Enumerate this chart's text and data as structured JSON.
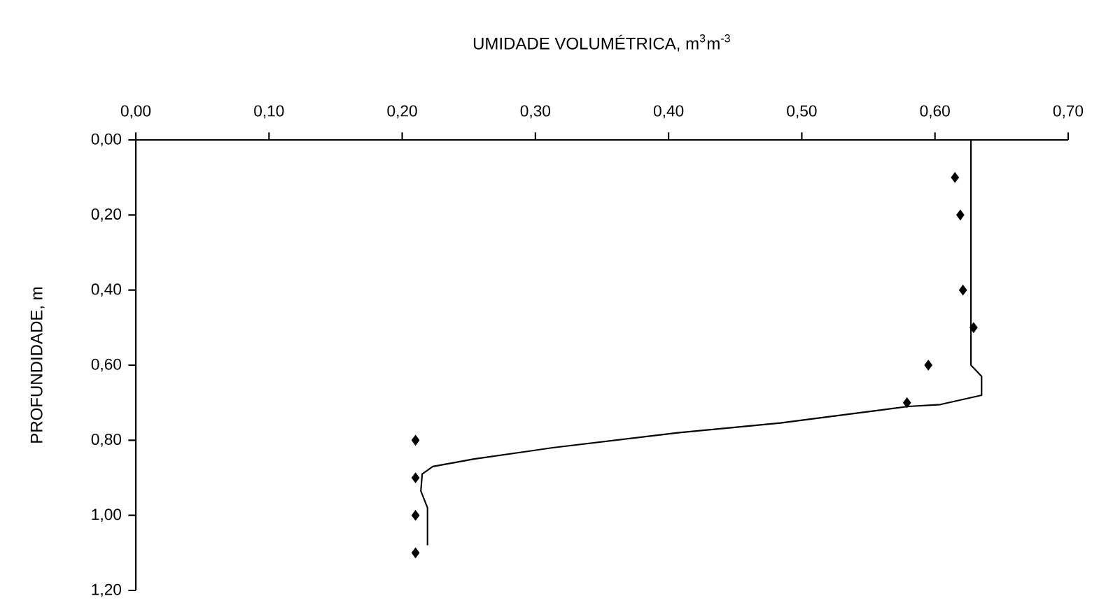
{
  "chart_data": {
    "type": "scatter",
    "xlabel": "UMIDADE VOLUMÉTRICA, m$^{3}$m$^{-3}$",
    "ylabel": "PROFUNDIDADE, m",
    "xlim": [
      0,
      0.7
    ],
    "ylim": [
      1.2,
      0
    ],
    "xticks": [
      {
        "value": 0,
        "label": "0,00"
      },
      {
        "value": 0.1,
        "label": "0,10"
      },
      {
        "value": 0.2,
        "label": "0,20"
      },
      {
        "value": 0.3,
        "label": "0,30"
      },
      {
        "value": 0.4,
        "label": "0,40"
      },
      {
        "value": 0.5,
        "label": "0,50"
      },
      {
        "value": 0.6,
        "label": "0,60"
      },
      {
        "value": 0.7,
        "label": "0,70"
      }
    ],
    "yticks": [
      {
        "value": 0,
        "label": "0,00"
      },
      {
        "value": 0.2,
        "label": "0,20"
      },
      {
        "value": 0.4,
        "label": "0,40"
      },
      {
        "value": 0.6,
        "label": "0,60"
      },
      {
        "value": 0.8,
        "label": "0,80"
      },
      {
        "value": 1.0,
        "label": "1,00"
      },
      {
        "value": 1.2,
        "label": "1,20"
      }
    ],
    "series": [
      {
        "color": "#000000",
        "marker": "diamond",
        "x": [
          0.615,
          0.619,
          0.621,
          0.629,
          0.595,
          0.579,
          0.21,
          0.21,
          0.21,
          0.21
        ],
        "values": [
          0.1,
          0.2,
          0.4,
          0.5,
          0.6,
          0.7,
          0.8,
          0.9,
          1.0,
          1.1
        ]
      },
      {
        "type": "line",
        "color": "#000000",
        "line_style": "solid",
        "marker": "none",
        "x": [
          0.627,
          0.627,
          0.635,
          0.635,
          0.604,
          0.58,
          0.484,
          0.407,
          0.313,
          0.254,
          0.223,
          0.215,
          0.214,
          0.219,
          0.219
        ],
        "values": [
          0,
          0.6,
          0.63,
          0.68,
          0.705,
          0.71,
          0.754,
          0.78,
          0.82,
          0.85,
          0.87,
          0.89,
          0.935,
          0.98,
          1.08
        ]
      }
    ]
  }
}
